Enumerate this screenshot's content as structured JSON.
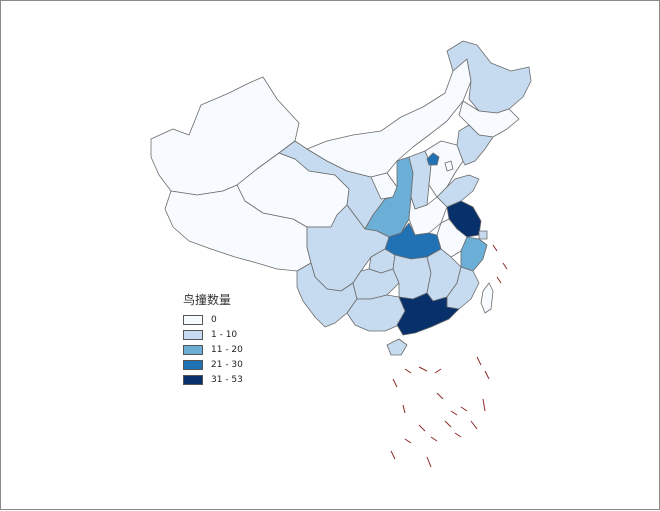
{
  "legend": {
    "title": "鸟撞数量",
    "classes": [
      {
        "label": "0",
        "color": "#f7fbff"
      },
      {
        "label": "1 - 10",
        "color": "#c6dbef"
      },
      {
        "label": "11 - 20",
        "color": "#6baed6"
      },
      {
        "label": "21 - 30",
        "color": "#2171b5"
      },
      {
        "label": "31 - 53",
        "color": "#08306b"
      }
    ]
  },
  "regions": [
    {
      "name": "xinjiang",
      "class": 0
    },
    {
      "name": "tibet",
      "class": 0
    },
    {
      "name": "qinghai",
      "class": 0
    },
    {
      "name": "gansu",
      "class": 1
    },
    {
      "name": "inner-mongolia",
      "class": 0
    },
    {
      "name": "ningxia",
      "class": 0
    },
    {
      "name": "shaanxi",
      "class": 2
    },
    {
      "name": "shanxi",
      "class": 1
    },
    {
      "name": "hebei",
      "class": 0
    },
    {
      "name": "beijing",
      "class": 3
    },
    {
      "name": "tianjin",
      "class": 0
    },
    {
      "name": "heilongjiang",
      "class": 1
    },
    {
      "name": "jilin",
      "class": 0
    },
    {
      "name": "liaoning",
      "class": 1
    },
    {
      "name": "shandong",
      "class": 1
    },
    {
      "name": "henan",
      "class": 0
    },
    {
      "name": "jiangsu",
      "class": 4
    },
    {
      "name": "shanghai",
      "class": 1
    },
    {
      "name": "anhui",
      "class": 0
    },
    {
      "name": "zhejiang",
      "class": 2
    },
    {
      "name": "hubei",
      "class": 3
    },
    {
      "name": "sichuan",
      "class": 1
    },
    {
      "name": "chongqing",
      "class": 1
    },
    {
      "name": "yunnan",
      "class": 1
    },
    {
      "name": "guizhou",
      "class": 1
    },
    {
      "name": "hunan",
      "class": 1
    },
    {
      "name": "jiangxi",
      "class": 1
    },
    {
      "name": "fujian",
      "class": 1
    },
    {
      "name": "guangxi",
      "class": 1
    },
    {
      "name": "guangdong",
      "class": 4
    },
    {
      "name": "hainan",
      "class": 1
    },
    {
      "name": "taiwan",
      "class": 0
    }
  ]
}
